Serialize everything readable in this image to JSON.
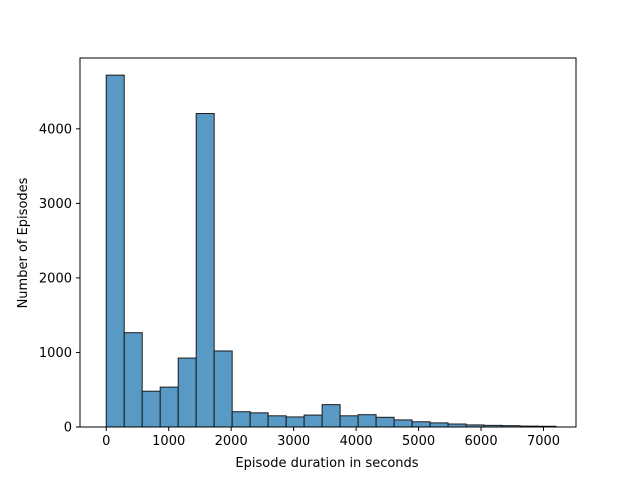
{
  "chart_data": {
    "type": "bar",
    "xlabel": "Episode duration in seconds",
    "ylabel": "Number of Episodes",
    "xlim": [
      -420,
      7520
    ],
    "ylim": [
      0,
      4950
    ],
    "bin_width": 288,
    "bins": [
      {
        "x0": 0,
        "x1": 288,
        "count": 4720
      },
      {
        "x0": 288,
        "x1": 576,
        "count": 1265
      },
      {
        "x0": 576,
        "x1": 864,
        "count": 480
      },
      {
        "x0": 864,
        "x1": 1152,
        "count": 535
      },
      {
        "x0": 1152,
        "x1": 1440,
        "count": 925
      },
      {
        "x0": 1440,
        "x1": 1728,
        "count": 4205
      },
      {
        "x0": 1728,
        "x1": 2016,
        "count": 1020
      },
      {
        "x0": 2016,
        "x1": 2304,
        "count": 205
      },
      {
        "x0": 2304,
        "x1": 2592,
        "count": 190
      },
      {
        "x0": 2592,
        "x1": 2880,
        "count": 150
      },
      {
        "x0": 2880,
        "x1": 3168,
        "count": 135
      },
      {
        "x0": 3168,
        "x1": 3456,
        "count": 160
      },
      {
        "x0": 3456,
        "x1": 3744,
        "count": 300
      },
      {
        "x0": 3744,
        "x1": 4032,
        "count": 150
      },
      {
        "x0": 4032,
        "x1": 4320,
        "count": 165
      },
      {
        "x0": 4320,
        "x1": 4608,
        "count": 130
      },
      {
        "x0": 4608,
        "x1": 4896,
        "count": 95
      },
      {
        "x0": 4896,
        "x1": 5184,
        "count": 70
      },
      {
        "x0": 5184,
        "x1": 5472,
        "count": 55
      },
      {
        "x0": 5472,
        "x1": 5760,
        "count": 40
      },
      {
        "x0": 5760,
        "x1": 6048,
        "count": 28
      },
      {
        "x0": 6048,
        "x1": 6336,
        "count": 22
      },
      {
        "x0": 6336,
        "x1": 6624,
        "count": 18
      },
      {
        "x0": 6624,
        "x1": 6912,
        "count": 12
      },
      {
        "x0": 6912,
        "x1": 7200,
        "count": 10
      }
    ],
    "xticks": [
      {
        "value": 0,
        "label": "0"
      },
      {
        "value": 1000,
        "label": "1000"
      },
      {
        "value": 2000,
        "label": "2000"
      },
      {
        "value": 3000,
        "label": "3000"
      },
      {
        "value": 4000,
        "label": "4000"
      },
      {
        "value": 5000,
        "label": "5000"
      },
      {
        "value": 6000,
        "label": "6000"
      },
      {
        "value": 7000,
        "label": "7000"
      }
    ],
    "yticks": [
      {
        "value": 0,
        "label": "0"
      },
      {
        "value": 1000,
        "label": "1000"
      },
      {
        "value": 2000,
        "label": "2000"
      },
      {
        "value": 3000,
        "label": "3000"
      },
      {
        "value": 4000,
        "label": "4000"
      }
    ],
    "grid": false,
    "colors": {
      "bar_fill": "#5899c5",
      "bar_edge": "#1a1a1a",
      "axes": "#000000"
    }
  }
}
